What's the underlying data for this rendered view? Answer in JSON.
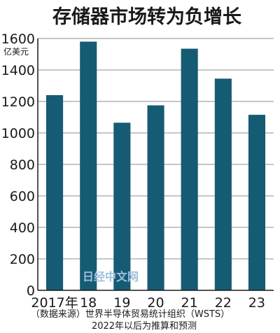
{
  "chart_data": {
    "type": "bar",
    "title": "存储器市场转为负增长",
    "ylabel": "亿美元",
    "xlabel": "",
    "categories": [
      "2017年",
      "18",
      "19",
      "20",
      "21",
      "22",
      "23"
    ],
    "values": [
      1240,
      1580,
      1065,
      1175,
      1535,
      1345,
      1115
    ],
    "ylim": [
      0,
      1600
    ],
    "yticks": [
      0,
      200,
      400,
      600,
      800,
      1000,
      1200,
      1400,
      1600
    ],
    "grid": true,
    "bar_color": "#165b74"
  },
  "footer": {
    "source": "（数据来源）世界半导体贸易统计组织（WSTS）",
    "note": "2022年以后为推算和预测"
  },
  "watermark": "日经中文网"
}
